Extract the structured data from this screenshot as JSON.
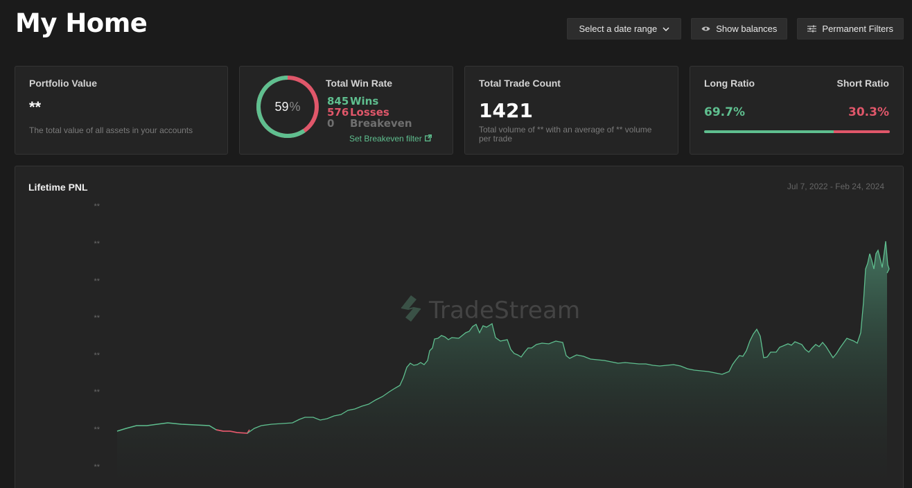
{
  "header": {
    "title": "My Home",
    "date_range_label": "Select a date range",
    "show_balances_label": "Show balances",
    "permanent_filters_label": "Permanent Filters"
  },
  "portfolio": {
    "title": "Portfolio Value",
    "value": "**",
    "description": "The total value of all assets in your accounts"
  },
  "win_rate": {
    "title": "Total Win Rate",
    "percent": "59",
    "percent_sign": "%",
    "wins_count": "845",
    "wins_label": "Wins",
    "losses_count": "576",
    "losses_label": "Losses",
    "breakeven_count": "0",
    "breakeven_label": "Breakeven",
    "breakeven_link": "Set Breakeven filter",
    "win_fraction": 0.595
  },
  "trade_count": {
    "title": "Total Trade Count",
    "value": "1421",
    "description": "Total volume of ** with an average of ** volume per trade"
  },
  "ratio": {
    "long_title": "Long Ratio",
    "short_title": "Short Ratio",
    "long_value": "69.7%",
    "short_value": "30.3%",
    "long_fraction": 0.697
  },
  "pnl": {
    "title": "Lifetime PNL",
    "date_range": "Jul 7, 2022 - Feb 24, 2024",
    "y_labels": [
      "**",
      "**",
      "**",
      "**",
      "**",
      "**",
      "**",
      "**"
    ],
    "watermark": "TradeStream"
  },
  "colors": {
    "green": "#5fbf8f",
    "red": "#e0576a",
    "card_bg": "#242424",
    "page_bg": "#1b1b1b"
  },
  "icons": {
    "date_range": "chevron-down-icon",
    "show_balances": "eye-icon",
    "permanent_filters": "sliders-icon",
    "breakeven_link": "external-link-icon",
    "watermark": "tradestream-logo-icon"
  }
}
